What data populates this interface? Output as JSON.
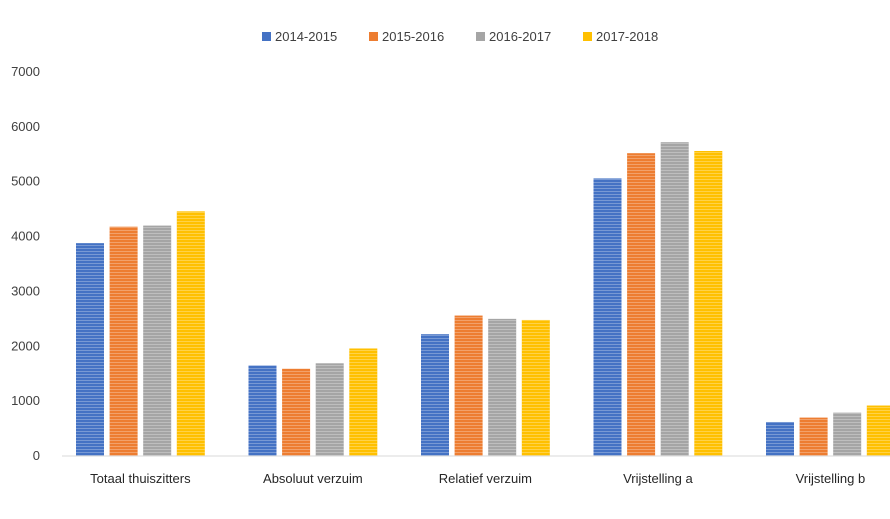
{
  "chart_data": {
    "type": "bar",
    "categories": [
      "Totaal thuiszitters",
      "Absoluut verzuim",
      "Relatief verzuim",
      "Vrijstelling a",
      "Vrijstelling b"
    ],
    "series": [
      {
        "name": "2014-2015",
        "color": "#4472C4",
        "values": [
          3880,
          1650,
          2220,
          5060,
          620
        ]
      },
      {
        "name": "2015-2016",
        "color": "#ED7D31",
        "values": [
          4180,
          1590,
          2560,
          5520,
          700
        ]
      },
      {
        "name": "2016-2017",
        "color": "#A5A5A5",
        "values": [
          4200,
          1690,
          2500,
          5720,
          790
        ]
      },
      {
        "name": "2017-2018",
        "color": "#FFC000",
        "values": [
          4460,
          1960,
          2480,
          5560,
          920
        ]
      }
    ],
    "yticks": [
      "0",
      "1000",
      "2000",
      "3000",
      "4000",
      "5000",
      "6000",
      "7000"
    ],
    "ylim": [
      0,
      7000
    ],
    "grid": false,
    "legend": "top-center"
  }
}
